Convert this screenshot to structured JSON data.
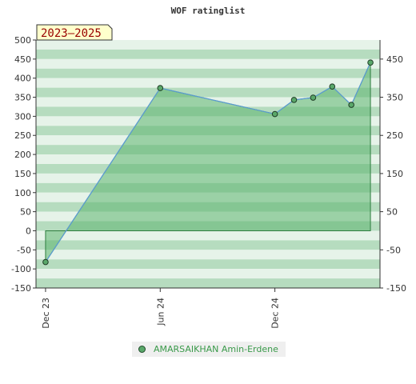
{
  "chart_data": {
    "type": "area",
    "title": "WOF ratinglist",
    "period_badge": "2023–2025",
    "xlabel": "",
    "ylabel": "",
    "x_tick_labels": [
      {
        "label": "Dec 23",
        "x": 0
      },
      {
        "label": "Jun 24",
        "x": 6
      },
      {
        "label": "Dec 24",
        "x": 12
      }
    ],
    "xlim": [
      -0.5,
      17.5
    ],
    "ylim": [
      -150,
      500
    ],
    "left_axis_ticks": [
      500,
      450,
      400,
      350,
      300,
      250,
      200,
      150,
      100,
      50,
      0,
      -50,
      -100,
      -150
    ],
    "right_axis_ticks": [
      450,
      350,
      250,
      150,
      50,
      -50,
      -150
    ],
    "grid": "banded horizontal",
    "baseline": 0,
    "series": [
      {
        "name": "AMARSAIKHAN Amin-Erdene",
        "color": "#5aa86a",
        "line_color": "#5b9bd5",
        "points": [
          {
            "x": 0,
            "y": -82
          },
          {
            "x": 6,
            "y": 374
          },
          {
            "x": 12,
            "y": 306
          },
          {
            "x": 13,
            "y": 343
          },
          {
            "x": 14,
            "y": 349
          },
          {
            "x": 15,
            "y": 378
          },
          {
            "x": 16,
            "y": 330
          },
          {
            "x": 17,
            "y": 441
          }
        ]
      }
    ]
  },
  "colors": {
    "band_dark": "#b6dcbf",
    "band_light": "#e6f3e9",
    "fill": "#5cb570",
    "badge_bg": "#ffffcc",
    "badge_text": "#990000"
  }
}
